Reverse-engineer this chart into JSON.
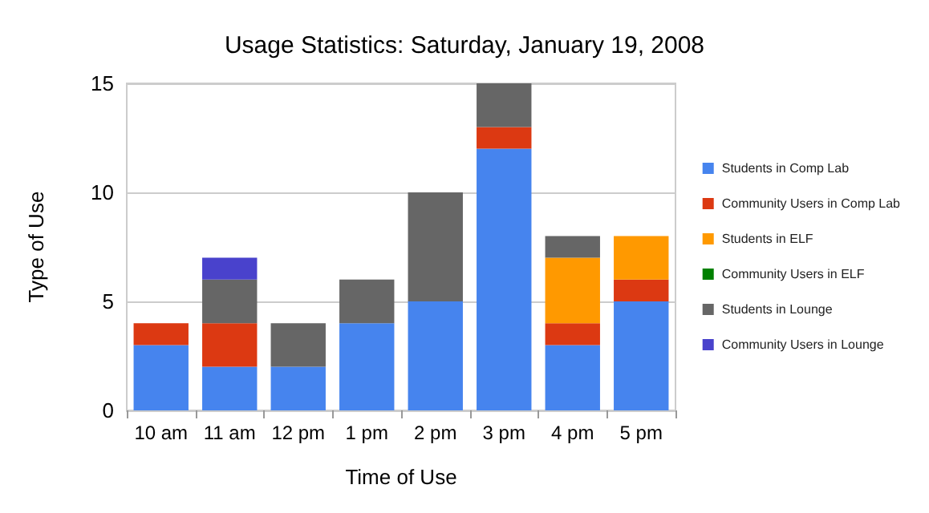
{
  "chart_data": {
    "type": "bar",
    "title": "Usage Statistics: Saturday, January 19, 2008",
    "xlabel": "Time of Use",
    "ylabel": "Type of Use",
    "stacked": true,
    "categories": [
      "10 am",
      "11 am",
      "12 pm",
      "1 pm",
      "2 pm",
      "3 pm",
      "4 pm",
      "5 pm"
    ],
    "series": [
      {
        "name": "Students in Comp Lab",
        "color": "#4684ee",
        "values": [
          3,
          2,
          2,
          4,
          5,
          12,
          3,
          5
        ]
      },
      {
        "name": "Community Users in Comp Lab",
        "color": "#dc3912",
        "values": [
          1,
          2,
          0,
          0,
          0,
          1,
          1,
          1
        ]
      },
      {
        "name": "Students in ELF",
        "color": "#ff9900",
        "values": [
          0,
          0,
          0,
          0,
          0,
          0,
          3,
          2
        ]
      },
      {
        "name": "Community Users in ELF",
        "color": "#008000",
        "values": [
          0,
          0,
          0,
          0,
          0,
          0,
          0,
          0
        ]
      },
      {
        "name": "Students in Lounge",
        "color": "#666666",
        "values": [
          0,
          2,
          2,
          2,
          5,
          2,
          1,
          0
        ]
      },
      {
        "name": "Community Users in Lounge",
        "color": "#4942cc",
        "values": [
          0,
          1,
          0,
          0,
          0,
          0,
          0,
          0
        ]
      }
    ],
    "ylim": [
      0,
      15
    ],
    "yticks": [
      0,
      5,
      10,
      15
    ],
    "grid": "y",
    "legend": "right"
  }
}
